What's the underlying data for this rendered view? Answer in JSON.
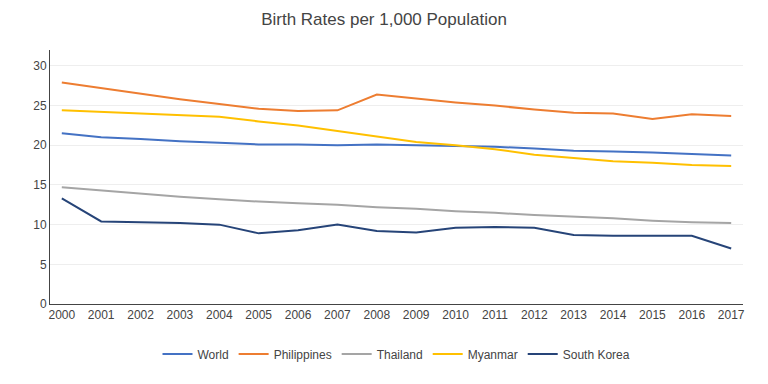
{
  "chart_data": {
    "type": "line",
    "title": "Birth Rates per 1,000 Population",
    "x": [
      2000,
      2001,
      2002,
      2003,
      2004,
      2005,
      2006,
      2007,
      2008,
      2009,
      2010,
      2011,
      2012,
      2013,
      2014,
      2015,
      2016,
      2017
    ],
    "series": [
      {
        "name": "World",
        "color": "#4472C4",
        "values": [
          21.5,
          21.0,
          20.8,
          20.5,
          20.3,
          20.1,
          20.1,
          20.0,
          20.1,
          20.0,
          19.9,
          19.8,
          19.6,
          19.3,
          19.2,
          19.1,
          18.9,
          18.7
        ]
      },
      {
        "name": "Philippines",
        "color": "#ED7D31",
        "values": [
          27.9,
          27.2,
          26.5,
          25.8,
          25.2,
          24.6,
          24.3,
          24.4,
          26.4,
          25.9,
          25.4,
          25.0,
          24.5,
          24.1,
          24.0,
          23.3,
          23.9,
          23.7
        ]
      },
      {
        "name": "Thailand",
        "color": "#A5A5A5",
        "values": [
          14.7,
          14.3,
          13.9,
          13.5,
          13.2,
          12.9,
          12.7,
          12.5,
          12.2,
          12.0,
          11.7,
          11.5,
          11.2,
          11.0,
          10.8,
          10.5,
          10.3,
          10.2
        ]
      },
      {
        "name": "Myanmar",
        "color": "#FFC000",
        "values": [
          24.4,
          24.2,
          24.0,
          23.8,
          23.6,
          23.0,
          22.5,
          21.8,
          21.1,
          20.4,
          20.0,
          19.5,
          18.8,
          18.4,
          18.0,
          17.8,
          17.5,
          17.4
        ]
      },
      {
        "name": "South Korea",
        "color": "#264478",
        "values": [
          13.3,
          10.4,
          10.3,
          10.2,
          10.0,
          8.9,
          9.3,
          10.0,
          9.2,
          9.0,
          9.6,
          9.7,
          9.6,
          8.7,
          8.6,
          8.6,
          8.6,
          7.0
        ]
      }
    ],
    "xlim": [
      1999.7,
      2017.3
    ],
    "xticks": [
      2000,
      2001,
      2002,
      2003,
      2004,
      2005,
      2006,
      2007,
      2008,
      2009,
      2010,
      2011,
      2012,
      2013,
      2014,
      2015,
      2016,
      2017
    ],
    "ylim": [
      0,
      32
    ],
    "yticks": [
      0,
      5,
      10,
      15,
      20,
      25,
      30
    ],
    "grid": true,
    "legend": "bottom"
  }
}
